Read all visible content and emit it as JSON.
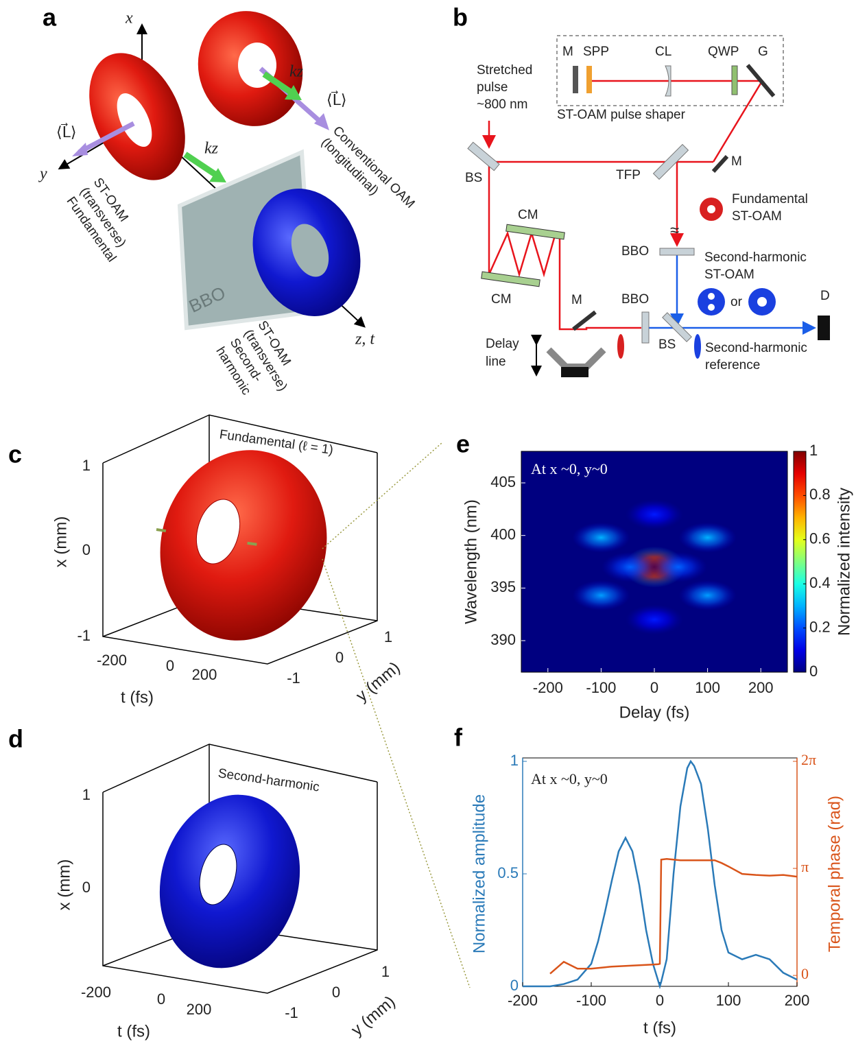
{
  "panels": {
    "a": {
      "label": "a",
      "x_axis": "x",
      "y_axis": "y",
      "z_axis": "z, t",
      "l_left": "⟨L⃗⟩",
      "l_right": "⟨L⃗⟩",
      "k_left": "kz",
      "k_right": "kz",
      "fundamental": [
        "ST-OAM",
        "(transverse)",
        "Fundamental"
      ],
      "conventional": [
        "Conventional OAM",
        "(longitudinal)"
      ],
      "crystal": "BBO",
      "second_harmonic": [
        "ST-OAM",
        "(transverse)",
        "Second-",
        "harmonic"
      ]
    },
    "b": {
      "label": "b",
      "source": [
        "Stretched",
        "pulse",
        "~800 nm"
      ],
      "m1": "M",
      "spp": "SPP",
      "cl": "CL",
      "qwp": "QWP",
      "g": "G",
      "shaper": "ST-OAM pulse shaper",
      "bs1": "BS",
      "tfp": "TFP",
      "m2": "M",
      "fundamental": [
        "Fundamental",
        "ST-OAM"
      ],
      "cm1": "CM",
      "cm2": "CM",
      "bbo1": "BBO",
      "approx": "≈",
      "second_harmonic": [
        "Second-harmonic",
        "ST-OAM"
      ],
      "or": "or",
      "m3": "M",
      "bbo2": "BBO",
      "bs2": "BS",
      "d": "D",
      "delay": [
        "Delay",
        "line"
      ],
      "reference": [
        "Second-harmonic",
        "reference"
      ]
    },
    "c": {
      "label": "c",
      "title": "Fundamental (ℓ = 1)",
      "x_label": "x (mm)",
      "x_ticks": [
        "1",
        "0",
        "-1"
      ],
      "t_label": "t (fs)",
      "t_ticks": [
        "-200",
        "0",
        "200"
      ],
      "y_label": "y (mm)",
      "y_ticks": [
        "1",
        "0",
        "-1"
      ]
    },
    "d": {
      "label": "d",
      "title": "Second-harmonic",
      "x_label": "x (mm)",
      "x_ticks": [
        "1",
        "0"
      ],
      "t_label": "t (fs)",
      "t_ticks": [
        "-200",
        "0",
        "200"
      ],
      "y_label": "y (mm)",
      "y_ticks": [
        "1",
        "0",
        "-1"
      ]
    },
    "e": {
      "label": "e"
    },
    "f": {
      "label": "f"
    }
  },
  "chart_data": [
    {
      "type": "heatmap",
      "annotation": "At x ~0, y~0",
      "x_label": "Delay (fs)",
      "y_label": "Wavelength (nm)",
      "colorbar_label": "Normalized intensity",
      "colormap": "jet",
      "xlim": [
        -250,
        250
      ],
      "xticks": [
        -200,
        -100,
        0,
        100,
        200
      ],
      "ylim": [
        387,
        408
      ],
      "yticks": [
        390,
        395,
        400,
        405
      ],
      "clim": [
        0,
        1
      ],
      "cticks": [
        0,
        0.2,
        0.4,
        0.6,
        0.8,
        1
      ],
      "x": [
        0,
        -100,
        100,
        -100,
        100,
        -45,
        45,
        0,
        0
      ],
      "y": [
        397,
        399.8,
        399.8,
        394.3,
        394.3,
        397,
        397,
        402,
        392
      ],
      "values": [
        1,
        0.3,
        0.3,
        0.28,
        0.28,
        0.22,
        0.22,
        0.15,
        0.15
      ]
    },
    {
      "type": "line",
      "annotation": "At x ~0, y~0",
      "x_label": "t (fs)",
      "y_label": "Normalized amplitude",
      "y2_label": "Temporal phase (rad)",
      "xlim": [
        -200,
        200
      ],
      "xticks": [
        -200,
        -100,
        0,
        100,
        200
      ],
      "ylim": [
        0,
        1
      ],
      "yticks": [
        0,
        0.5,
        1
      ],
      "y2lim": [
        -0.32,
        6.2832
      ],
      "y2ticks": [
        0,
        {
          "value": 3.1416,
          "label": "π"
        },
        {
          "value": 6.2832,
          "label": "2π"
        }
      ],
      "x": [
        -200,
        -180,
        -160,
        -140,
        -120,
        -100,
        -90,
        -80,
        -70,
        -60,
        -50,
        -40,
        -30,
        -20,
        -10,
        -2,
        0,
        2,
        10,
        20,
        30,
        40,
        45,
        50,
        60,
        70,
        80,
        90,
        100,
        120,
        140,
        160,
        180,
        200
      ],
      "series": [
        {
          "name": "Normalized amplitude",
          "color": "#2a7ab8",
          "values": [
            0,
            0,
            0,
            0.01,
            0.03,
            0.1,
            0.2,
            0.33,
            0.47,
            0.6,
            0.66,
            0.6,
            0.45,
            0.25,
            0.1,
            0.02,
            0,
            0.02,
            0.12,
            0.5,
            0.8,
            0.97,
            1,
            0.98,
            0.9,
            0.7,
            0.45,
            0.25,
            0.15,
            0.12,
            0.14,
            0.12,
            0.06,
            0.03
          ]
        },
        {
          "name": "Temporal phase (rad)",
          "color": "#d9541a",
          "axis": "y2",
          "values": [
            null,
            null,
            0.05,
            0.4,
            0.2,
            0.2,
            0.22,
            0.24,
            0.26,
            0.27,
            0.28,
            0.29,
            0.3,
            0.31,
            0.32,
            0.33,
            0.34,
            3.4,
            3.42,
            3.4,
            3.38,
            3.38,
            3.38,
            3.38,
            3.38,
            3.38,
            3.38,
            3.3,
            3.2,
            2.98,
            2.95,
            2.93,
            2.95,
            2.9
          ]
        }
      ]
    }
  ]
}
